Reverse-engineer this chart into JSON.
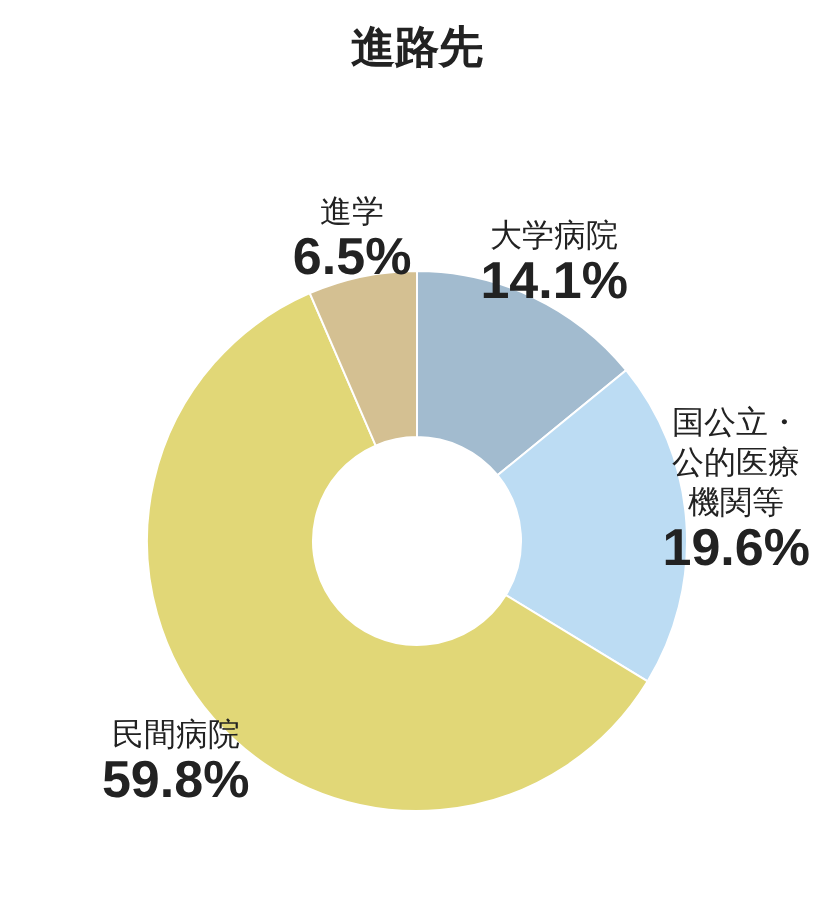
{
  "chart_data": {
    "type": "donut",
    "title": "進路先",
    "categories": [
      "大学病院",
      "国公立・公的医療機関等",
      "民間病院",
      "進学"
    ],
    "values": [
      14.1,
      19.6,
      59.8,
      6.5
    ],
    "colors": [
      "#a2bbcf",
      "#bcdcf3",
      "#e1d777",
      "#d4c092"
    ],
    "value_labels": [
      "14.1%",
      "19.6%",
      "59.8%",
      "6.5%"
    ],
    "legend": false
  }
}
